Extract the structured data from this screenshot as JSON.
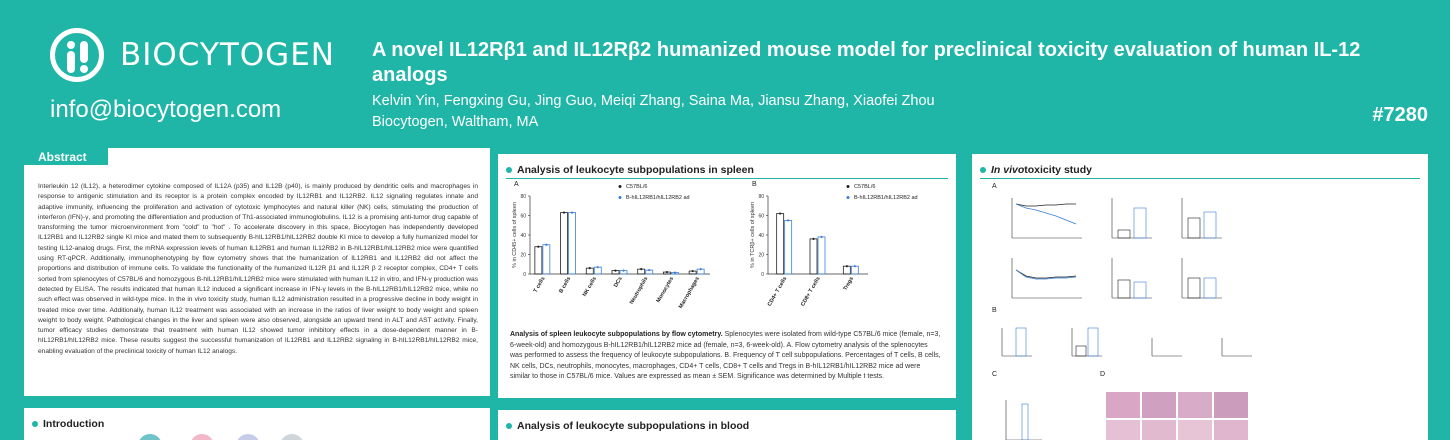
{
  "header": {
    "brand": "BIOCYTOGEN",
    "email": "info@biocytogen.com",
    "title": "A novel IL12Rβ1 and IL12Rβ2 humanized mouse model for preclinical toxicity evaluation of human IL-12 analogs",
    "authors": "Kelvin Yin, Fengxing Gu, Jing Guo, Meiqi Zhang, Saina Ma, Jiansu Zhang, Xiaofei Zhou",
    "affiliation": "Biocytogen, Waltham, MA",
    "poster_number": "#7280"
  },
  "colors": {
    "teal": "#1fb5a7",
    "series_black": "#222222",
    "series_blue": "#3a7fd5"
  },
  "abstract": {
    "heading": "Abstract",
    "text": "Interleukin 12 (IL12), a heterodimer cytokine composed of IL12A (p35) and IL12B (p40), is mainly produced by dendritic cells and macrophages in response to antigenic stimulation and its receptor is a protein complex encoded by IL12RB1 and IL12RB2. IL12 signaling regulates innate and adaptive immunity, influencing the proliferation and activation of cytotoxic lymphocytes and natural killer (NK) cells, stimulating the production of interferon (IFN)-γ, and promoting the differentiation and production of Th1-associated immunoglobulins. IL12 is a promising anti-tumor drug capable of transforming the tumor microenvironment from \"cold\" to \"hot\" . To accelerate discovery in this space, Biocytogen has independently developed IL12RB1 and IL12RB2 single KI mice and mated them to subsequently B-hIL12RB1/hIL12RB2 double KI mice to develop a fully humanized model for testing IL12-analog drugs. First, the mRNA expression levels of human IL12RB1 and human IL12RB2 in B-hIL12RB1/hIL12RB2 mice were quantified using RT-qPCR. Additionally, immunophenotyping by flow cytometry shows that the humanization of IL12RB1 and IL12RB2 did not affect the proportions and distribution of immune cells. To validate the functionality of the humanized IL12R β1 and IL12R β 2 receptor complex, CD4+ T cells sorted from splenocytes of C57BL/6 and homozygous B-hIL12RB1/hIL12RB2 mice were stimulated with human IL12 in vitro, and IFN-γ production was detected by ELISA. The results indicated that human IL12 induced a significant increase in IFN-γ levels in the B-hIL12RB1/hIL12RB2 mice, while no such effect was observed in wild-type mice. In the in vivo toxicity study, human IL12 administration resulted in a progressive decline in body weight in treated mice over time. Additionally, human IL12 treatment was associated with an increase in the ratios of liver weight to body weight and spleen weight to body weight. Pathological changes in the liver and spleen were also observed, alongside an upward trend in ALT and AST activity. Finally, tumor efficacy studies demonstrate that treatment with human IL12 showed tumor inhibitory effects in a dose-dependent manner in B-hIL12RB1/hIL12RB2 mice. These results suggest the successful humanization of IL12RB1 and IL12RB2 signaling in B-hIL12RB1/hIL12RB2 mice, enabling evaluation of the preclinical toxicity of human IL12 analogs."
  },
  "introduction": {
    "heading": "Introduction"
  },
  "spleen": {
    "heading": "Analysis of leukocyte subpopulations in spleen",
    "caption_bold": "Analysis of spleen leukocyte subpopulations by flow cytometry.",
    "caption_rest": " Splenocytes were isolated from wild-type C57BL/6 mice (female, n=3, 6-week-old) and homozygous B-hIL12RB1/hIL12RB2 mice ad (female, n=3, 6-week-old). A. Flow cytometry analysis of the splenocytes was performed to assess the frequency of leukocyte subpopulations. B. Frequency of T cell subpopulations. Percentages of T cells, B cells, NK cells, DCs, neutrophils, monocytes, macrophages, CD4+ T cells, CD8+ T cells and Tregs in B-hIL12RB1/hIL12RB2 mice ad were similar to those in C57BL/6 mice. Values are expressed as mean ± SEM. Significance was determined by Multiple t tests."
  },
  "blood": {
    "heading": "Analysis of leukocyte subpopulations in blood"
  },
  "toxicity": {
    "heading_italic": "In vivo",
    "heading_rest": " toxicity study",
    "panel_labels": [
      "A",
      "B",
      "C",
      "D"
    ]
  },
  "chart_data": [
    {
      "type": "bar",
      "panel": "A",
      "ylabel": "% in CD45+ cells of spleen",
      "ylim": [
        0,
        80
      ],
      "yticks": [
        0,
        20,
        40,
        60,
        80
      ],
      "categories": [
        "T cells",
        "B cells",
        "NK cells",
        "DCs",
        "Neutrophils",
        "Monocytes",
        "Macrophages"
      ],
      "legend": "top-right",
      "series": [
        {
          "name": "C57BL/6",
          "values": [
            28,
            63,
            6,
            3.5,
            5,
            2,
            3
          ]
        },
        {
          "name": "B-hIL12RB1/hIL12RB2 ad",
          "values": [
            30,
            63,
            7,
            3.5,
            4,
            1.5,
            5
          ]
        }
      ]
    },
    {
      "type": "bar",
      "panel": "B",
      "ylabel": "% in TCRβ+ cells of spleen",
      "ylim": [
        0,
        80
      ],
      "yticks": [
        0,
        20,
        40,
        60,
        80
      ],
      "categories": [
        "CD4+ T cells",
        "CD8+ T cells",
        "Tregs"
      ],
      "legend": "top-right",
      "series": [
        {
          "name": "C57BL/6",
          "values": [
            62,
            36,
            8
          ]
        },
        {
          "name": "B-hIL12RB1/hIL12RB2 ad",
          "values": [
            55,
            38,
            8
          ]
        }
      ]
    }
  ]
}
